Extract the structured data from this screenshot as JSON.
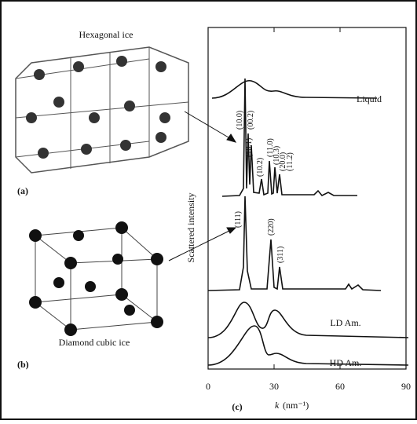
{
  "panels": {
    "a": {
      "label": "(a)",
      "caption": "Hexagonal ice"
    },
    "b": {
      "label": "(b)",
      "caption": "Diamond cubic ice"
    },
    "c": {
      "label": "(c)"
    }
  },
  "plot": {
    "y_axis_label": "Scattered intensity",
    "x_axis": {
      "symbol": "k",
      "unit": "(nm⁻¹)",
      "ticks": [
        0,
        30,
        60,
        90
      ],
      "lim": [
        0,
        90
      ]
    },
    "curve_labels": [
      "Liquid",
      "LD Am.",
      "HD Am."
    ],
    "hexagonal_peaks": [
      "(10.0)",
      "(00.2)",
      "(10.1)",
      "(10.2)",
      "(11.0)",
      "(10.3)",
      "(20.0)",
      "(11.2)"
    ],
    "cubic_peaks": [
      "(111)",
      "(220)",
      "(311)"
    ]
  }
}
